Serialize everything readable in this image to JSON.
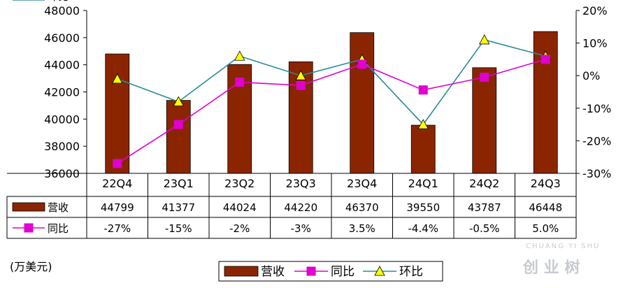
{
  "chart_data": {
    "type": "bar",
    "categories": [
      "22Q4",
      "23Q1",
      "23Q2",
      "23Q3",
      "23Q4",
      "24Q1",
      "24Q2",
      "24Q3"
    ],
    "series": [
      {
        "name": "营收",
        "kind": "bar",
        "axis": "left",
        "color": "#8b2500",
        "values": [
          44799,
          41377,
          44024,
          44220,
          46370,
          39550,
          43787,
          46448
        ],
        "labels": [
          "44799",
          "41377",
          "44024",
          "44220",
          "46370",
          "39550",
          "43787",
          "46448"
        ]
      },
      {
        "name": "同比",
        "kind": "line",
        "axis": "right",
        "color": "#e000d0",
        "marker": "square",
        "values": [
          -27,
          -15,
          -2,
          -3,
          3.5,
          -4.4,
          -0.5,
          5.0
        ],
        "labels": [
          "-27%",
          "-15%",
          "-2%",
          "-3%",
          "3.5%",
          "-4.4%",
          "-0.5%",
          "5.0%"
        ]
      },
      {
        "name": "环比",
        "kind": "line",
        "axis": "right",
        "color": "#2a8a9a",
        "marker": "triangle",
        "marker_fill": "#ffff00",
        "values": [
          -1,
          -8,
          6,
          0,
          5,
          -15,
          11,
          6
        ],
        "labels": [
          "-1%",
          "-8%",
          "6%",
          "0%",
          "5%",
          "-15%",
          "11%",
          "6%"
        ]
      }
    ],
    "ylim_left": [
      36000,
      48000
    ],
    "yticks_left": [
      "48000",
      "46000",
      "44000",
      "42000",
      "40000",
      "38000",
      "36000"
    ],
    "ylim_right": [
      -30,
      20
    ],
    "yticks_right": [
      "20%",
      "10%",
      "0%",
      "-10%",
      "-20%",
      "-30%"
    ],
    "grid": false,
    "data_table": true,
    "legend_position": "bottom-center"
  },
  "unit_label": "(万美元)",
  "watermark": {
    "brand": "CHUANG YI SHU",
    "cn": "创 业 树"
  }
}
